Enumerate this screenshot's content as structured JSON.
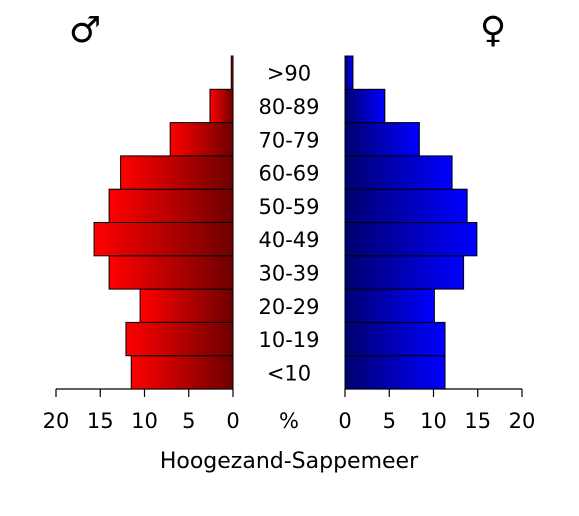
{
  "chart_data": {
    "type": "pyramid",
    "title": "Hoogezand-Sappemeer",
    "unit_label": "%",
    "categories": [
      "<10",
      "10-19",
      "20-29",
      "30-39",
      "40-49",
      "50-59",
      "60-69",
      "70-79",
      "80-89",
      ">90"
    ],
    "series": [
      {
        "name": "♂",
        "side": "left",
        "gradient": [
          "#ff0000",
          "#6e0000"
        ],
        "values": [
          11.5,
          12.1,
          10.5,
          14.0,
          15.7,
          14.0,
          12.7,
          7.1,
          2.6,
          0.2
        ]
      },
      {
        "name": "♀",
        "side": "right",
        "gradient": [
          "#00006e",
          "#0000ff"
        ],
        "values": [
          11.3,
          11.3,
          10.1,
          13.4,
          14.9,
          13.8,
          12.1,
          8.4,
          4.5,
          0.9
        ]
      }
    ],
    "xlim": [
      0,
      20
    ],
    "xticks": [
      0,
      5,
      10,
      15,
      20
    ]
  }
}
